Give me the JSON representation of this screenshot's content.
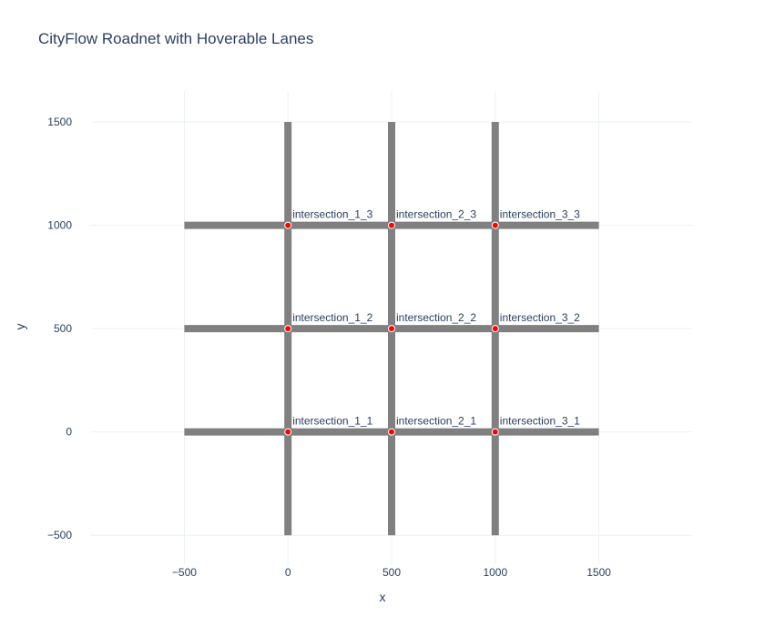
{
  "chart_data": {
    "type": "scatter",
    "title": "CityFlow Roadnet with Hoverable Lanes",
    "xlabel": "x",
    "ylabel": "y",
    "xlim": [
      -950,
      1950
    ],
    "ylim": [
      -640,
      1650
    ],
    "xticks": [
      -500,
      0,
      500,
      1000,
      1500
    ],
    "xtick_labels": [
      "−500",
      "0",
      "500",
      "1000",
      "1500"
    ],
    "yticks": [
      -500,
      0,
      500,
      1000,
      1500
    ],
    "ytick_labels": [
      "−500",
      "0",
      "500",
      "1000",
      "1500"
    ],
    "grid": true,
    "roads": [
      {
        "x": [
          -500,
          1500
        ],
        "y": [
          0,
          0
        ]
      },
      {
        "x": [
          -500,
          1500
        ],
        "y": [
          500,
          500
        ]
      },
      {
        "x": [
          -500,
          1500
        ],
        "y": [
          1000,
          1000
        ]
      },
      {
        "x": [
          0,
          0
        ],
        "y": [
          -500,
          1500
        ]
      },
      {
        "x": [
          500,
          500
        ],
        "y": [
          -500,
          1500
        ]
      },
      {
        "x": [
          1000,
          1000
        ],
        "y": [
          -500,
          1500
        ]
      }
    ],
    "intersections": [
      {
        "name": "intersection_1_1",
        "x": 0,
        "y": 0
      },
      {
        "name": "intersection_2_1",
        "x": 500,
        "y": 0
      },
      {
        "name": "intersection_3_1",
        "x": 1000,
        "y": 0
      },
      {
        "name": "intersection_1_2",
        "x": 0,
        "y": 500
      },
      {
        "name": "intersection_2_2",
        "x": 500,
        "y": 500
      },
      {
        "name": "intersection_3_2",
        "x": 1000,
        "y": 500
      },
      {
        "name": "intersection_1_3",
        "x": 0,
        "y": 1000
      },
      {
        "name": "intersection_2_3",
        "x": 500,
        "y": 1000
      },
      {
        "name": "intersection_3_3",
        "x": 1000,
        "y": 1000
      }
    ],
    "colors": {
      "road": "#808080",
      "node": "#ff0000",
      "node_outline": "#ffffff",
      "grid": "#ebf0f8",
      "text": "#2a3f5f"
    }
  }
}
